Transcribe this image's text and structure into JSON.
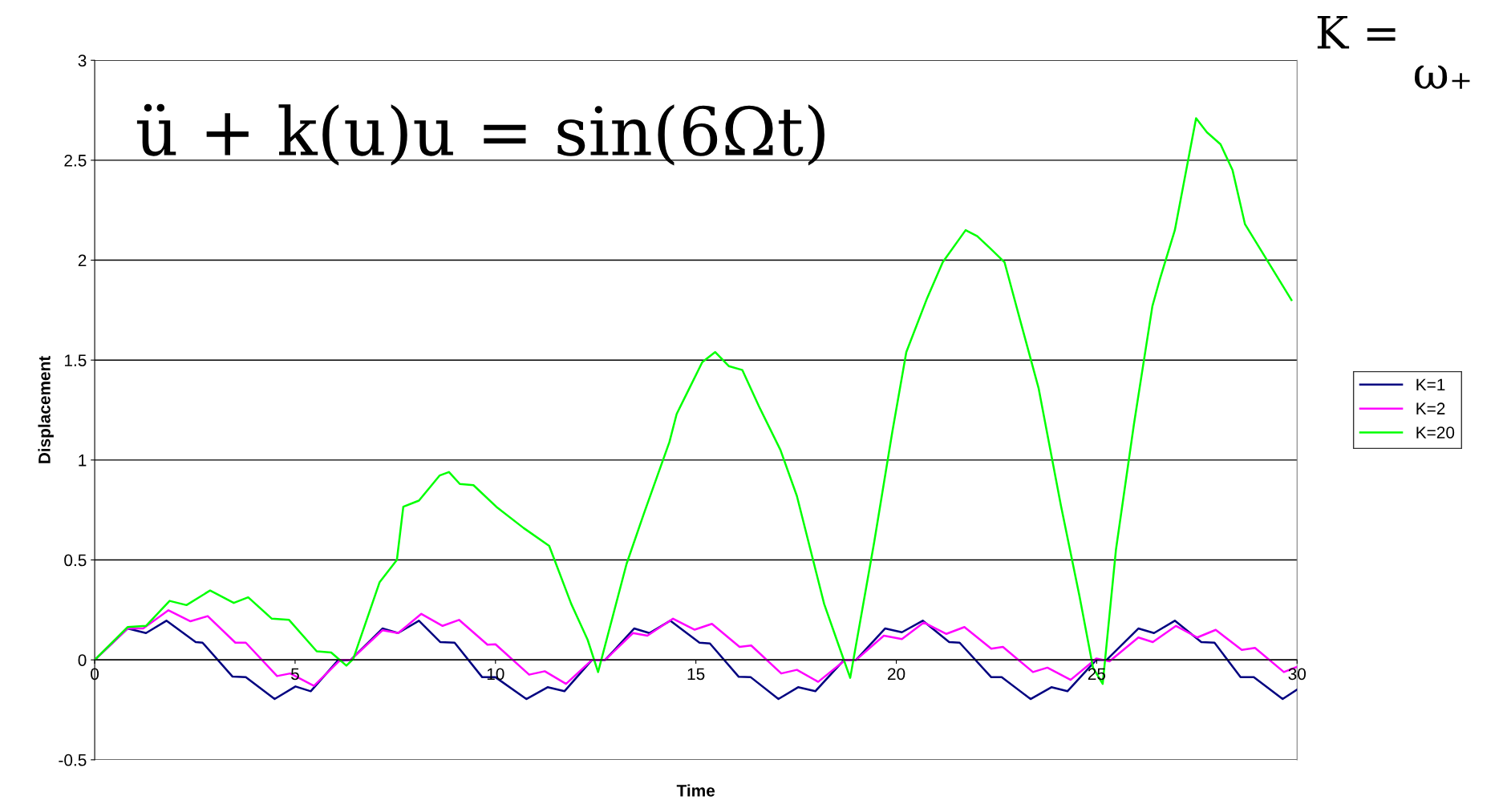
{
  "chart_data": {
    "type": "line",
    "xlabel": "Time",
    "ylabel": "Displacement",
    "xlim": [
      0,
      30
    ],
    "xticks": [
      0,
      5,
      10,
      15,
      20,
      25,
      30
    ],
    "ylim": [
      -0.5,
      3
    ],
    "yticks": [
      -0.5,
      0,
      0.5,
      1,
      1.5,
      2,
      2.5,
      3
    ],
    "grid": "y",
    "legend": "right",
    "marker": "none",
    "line_style": "solid",
    "annotations": [
      "ü + k(u)u = sin(6Ωt)",
      "K =",
      "ω₊"
    ],
    "series": [
      {
        "name": "K=1",
        "color": "#000080",
        "x": [
          0,
          0.82,
          1.28,
          1.79,
          2.52,
          2.69,
          3.44,
          3.77,
          4.49,
          5.01,
          5.39,
          6.06,
          6.39,
          7.18,
          7.57,
          8.09,
          8.62,
          8.98,
          9.67,
          10,
          10.77,
          11.3,
          11.72,
          12.41,
          12.74,
          13.46,
          13.84,
          14.36,
          15.09,
          15.35,
          16.07,
          16.37,
          17.06,
          17.55,
          17.98,
          18.7,
          19.0,
          19.72,
          20.14,
          20.66,
          21.32,
          21.58,
          22.37,
          22.63,
          23.35,
          23.87,
          24.27,
          24.99,
          25.25,
          26.04,
          26.43,
          26.95,
          27.61,
          27.94,
          28.59,
          28.92,
          29.64,
          30
        ],
        "values": [
          0,
          0.157,
          0.134,
          0.196,
          0.089,
          0.086,
          -0.084,
          -0.087,
          -0.196,
          -0.133,
          -0.157,
          -0.005,
          0,
          0.157,
          0.134,
          0.196,
          0.089,
          0.086,
          -0.087,
          -0.087,
          -0.196,
          -0.137,
          -0.157,
          0,
          0,
          0.157,
          0.134,
          0.196,
          0.086,
          0.082,
          -0.085,
          -0.087,
          -0.196,
          -0.137,
          -0.157,
          0,
          0,
          0.157,
          0.138,
          0.196,
          0.089,
          0.086,
          -0.087,
          -0.087,
          -0.196,
          -0.137,
          -0.157,
          0,
          0,
          0.157,
          0.134,
          0.196,
          0.089,
          0.086,
          -0.087,
          -0.087,
          -0.196,
          -0.149
        ]
      },
      {
        "name": "K=2",
        "color": "#ff00ff",
        "x": [
          0,
          0.82,
          1.21,
          1.84,
          2.39,
          2.82,
          3.51,
          3.77,
          4.55,
          4.88,
          5.47,
          6.13,
          6.39,
          7.18,
          7.57,
          8.15,
          8.68,
          9.09,
          9.8,
          10,
          10.84,
          11.23,
          11.76,
          12.41,
          12.74,
          13.43,
          13.79,
          14.43,
          14.97,
          15.4,
          16.09,
          16.38,
          17.13,
          17.52,
          18.05,
          18.73,
          19.0,
          19.69,
          20.14,
          20.69,
          21.25,
          21.7,
          22.37,
          22.66,
          23.41,
          23.77,
          24.35,
          24.99,
          25.32,
          26.04,
          26.4,
          26.98,
          27.51,
          27.97,
          28.62,
          28.95,
          29.67,
          30
        ],
        "values": [
          0,
          0.157,
          0.157,
          0.248,
          0.193,
          0.219,
          0.086,
          0.086,
          -0.081,
          -0.068,
          -0.13,
          0,
          0,
          0.148,
          0.134,
          0.23,
          0.17,
          0.2,
          0.076,
          0.078,
          -0.074,
          -0.057,
          -0.12,
          0,
          0,
          0.134,
          0.121,
          0.206,
          0.151,
          0.18,
          0.065,
          0.072,
          -0.068,
          -0.05,
          -0.11,
          0,
          0,
          0.121,
          0.104,
          0.187,
          0.13,
          0.164,
          0.056,
          0.065,
          -0.061,
          -0.039,
          -0.1,
          0.007,
          -0.007,
          0.112,
          0.089,
          0.17,
          0.112,
          0.15,
          0.05,
          0.06,
          -0.061,
          -0.035
        ]
      },
      {
        "name": "K=20",
        "color": "#00ff00",
        "x": [
          0,
          0.82,
          1.28,
          1.87,
          2.29,
          2.88,
          3.47,
          3.83,
          4.42,
          4.85,
          5.54,
          5.9,
          6.28,
          6.45,
          7.11,
          7.54,
          7.7,
          8.09,
          8.61,
          8.84,
          9.11,
          9.45,
          10.02,
          10.7,
          11.34,
          11.89,
          12.3,
          12.56,
          13.27,
          13.7,
          14.34,
          14.52,
          14.84,
          15.16,
          15.48,
          15.82,
          16.16,
          16.57,
          17.11,
          17.52,
          18.2,
          18.55,
          18.85,
          19.45,
          19.9,
          20.25,
          20.77,
          21.16,
          21.73,
          22.02,
          22.34,
          22.7,
          23.09,
          23.55,
          24.11,
          24.57,
          24.91,
          25.15,
          25.48,
          25.93,
          26.39,
          26.57,
          26.95,
          27.48,
          27.75,
          28.09,
          28.39,
          28.7,
          29.86
        ],
        "values": [
          0,
          0.164,
          0.17,
          0.295,
          0.274,
          0.347,
          0.285,
          0.313,
          0.206,
          0.2,
          0.043,
          0.037,
          -0.029,
          0.004,
          0.389,
          0.5,
          0.766,
          0.797,
          0.923,
          0.94,
          0.88,
          0.874,
          0.766,
          0.66,
          0.57,
          0.28,
          0.1,
          -0.061,
          0.48,
          0.73,
          1.09,
          1.23,
          1.36,
          1.49,
          1.54,
          1.47,
          1.45,
          1.27,
          1.05,
          0.82,
          0.28,
          0.08,
          -0.09,
          0.59,
          1.14,
          1.54,
          1.81,
          1.99,
          2.15,
          2.12,
          2.06,
          1.99,
          1.7,
          1.36,
          0.77,
          0.32,
          -0.04,
          -0.12,
          0.55,
          1.18,
          1.77,
          1.9,
          2.15,
          2.71,
          2.64,
          2.58,
          2.45,
          2.18,
          1.8
        ]
      }
    ]
  }
}
